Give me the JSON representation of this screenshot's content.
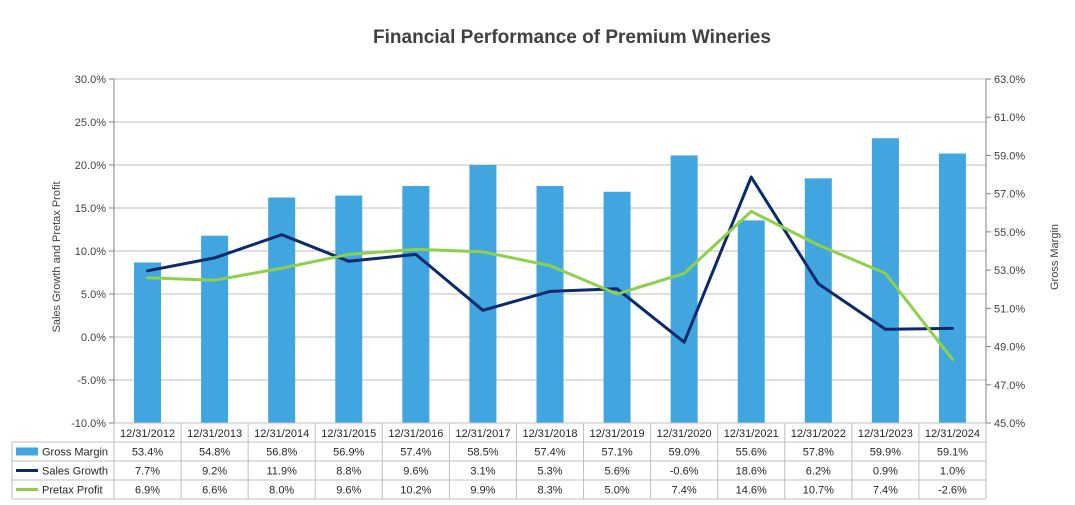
{
  "chart_data": {
    "type": "bar",
    "title": "Financial Performance of Premium Wineries",
    "categories": [
      "12/31/2012",
      "12/31/2013",
      "12/31/2014",
      "12/31/2015",
      "12/31/2016",
      "12/31/2017",
      "12/31/2018",
      "12/31/2019",
      "12/31/2020",
      "12/31/2021",
      "12/31/2022",
      "12/31/2023",
      "12/31/2024"
    ],
    "series": [
      {
        "name": "Gross Margin",
        "chart_type": "bar",
        "axis": "right",
        "color": "#41A6E0",
        "values": [
          53.4,
          54.8,
          56.8,
          56.9,
          57.4,
          58.5,
          57.4,
          57.1,
          59.0,
          55.6,
          57.8,
          59.9,
          59.1
        ],
        "labels": [
          "53.4%",
          "54.8%",
          "56.8%",
          "56.9%",
          "57.4%",
          "58.5%",
          "57.4%",
          "57.1%",
          "59.0%",
          "55.6%",
          "57.8%",
          "59.9%",
          "59.1%"
        ]
      },
      {
        "name": "Sales Growth",
        "chart_type": "line",
        "axis": "left",
        "color": "#0B2A6B",
        "values": [
          7.7,
          9.2,
          11.9,
          8.8,
          9.6,
          3.1,
          5.3,
          5.6,
          -0.6,
          18.6,
          6.2,
          0.9,
          1.0
        ],
        "labels": [
          "7.7%",
          "9.2%",
          "11.9%",
          "8.8%",
          "9.6%",
          "3.1%",
          "5.3%",
          "5.6%",
          "-0.6%",
          "18.6%",
          "6.2%",
          "0.9%",
          "1.0%"
        ]
      },
      {
        "name": "Pretax Profit",
        "chart_type": "line",
        "axis": "left",
        "color": "#8DD14A",
        "values": [
          6.9,
          6.6,
          8.0,
          9.6,
          10.2,
          9.9,
          8.3,
          5.0,
          7.4,
          14.6,
          10.7,
          7.4,
          -2.6
        ],
        "labels": [
          "6.9%",
          "6.6%",
          "8.0%",
          "9.6%",
          "10.2%",
          "9.9%",
          "8.3%",
          "5.0%",
          "7.4%",
          "14.6%",
          "10.7%",
          "7.4%",
          "-2.6%"
        ]
      }
    ],
    "y_left": {
      "label": "Sales Growth and Pretax Profit",
      "range": [
        -10,
        30
      ],
      "ticks": [
        30,
        25,
        20,
        15,
        10,
        5,
        0,
        -5,
        -10
      ],
      "tick_labels": [
        "30.0%",
        "25.0%",
        "20.0%",
        "15.0%",
        "10.0%",
        "5.0%",
        "0.0%",
        "-5.0%",
        "-10.0%"
      ]
    },
    "y_right": {
      "label": "Gross Margin",
      "range": [
        45,
        63
      ],
      "ticks": [
        63,
        61,
        59,
        57,
        55,
        53,
        51,
        49,
        47,
        45
      ],
      "tick_labels": [
        "63.0%",
        "61.0%",
        "59.0%",
        "57.0%",
        "55.0%",
        "53.0%",
        "51.0%",
        "49.0%",
        "47.0%",
        "45.0%"
      ]
    },
    "grid": true,
    "legend": "data-table-below"
  }
}
